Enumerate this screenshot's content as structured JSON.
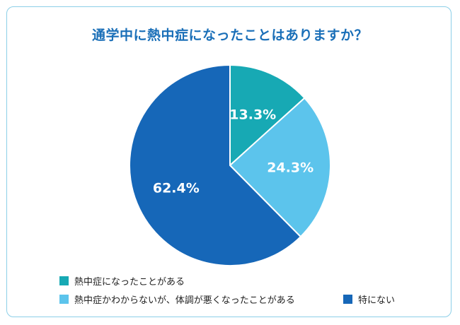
{
  "colors": {
    "border": "#8ccfe8",
    "title": "#1a6fb8",
    "label": "#ffffff",
    "legend_text": "#222222"
  },
  "chart_data": {
    "type": "pie",
    "title": "通学中に熱中症になったことはありますか？",
    "slices": [
      {
        "label": "熱中症になったことがある",
        "value": 13.3,
        "value_label": "13.3%",
        "color": "#17a9b4"
      },
      {
        "label": "熱中症かわからないが、体調が悪くなったことがある",
        "value": 24.3,
        "value_label": "24.3%",
        "color": "#5cc4ec"
      },
      {
        "label": "特にない",
        "value": 62.4,
        "value_label": "62.4%",
        "color": "#1667b8"
      }
    ],
    "start_angle": "12 o'clock",
    "direction": "clockwise",
    "legend_position": "bottom"
  }
}
